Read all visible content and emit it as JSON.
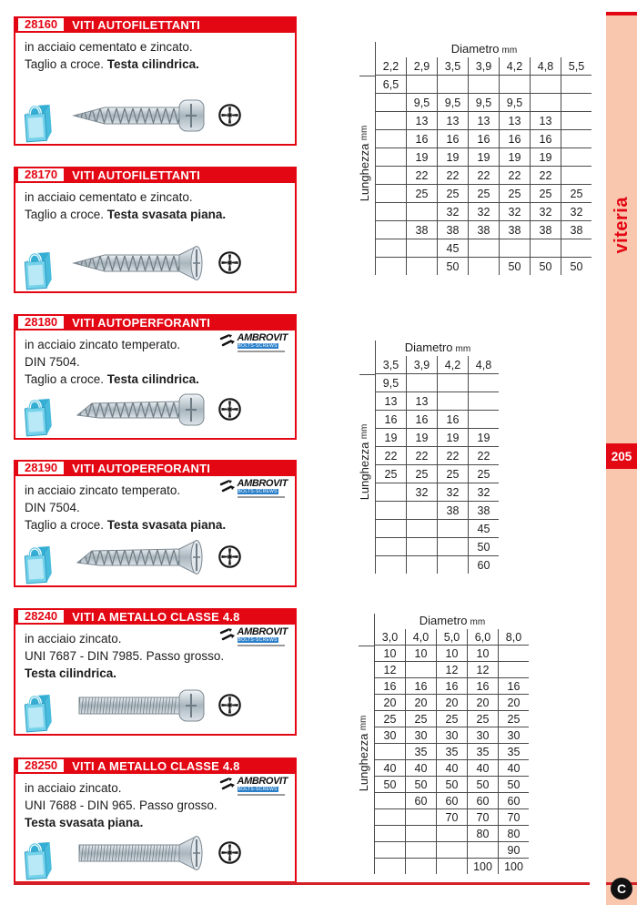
{
  "page": {
    "sidebar_label": "viteria",
    "page_number": "205",
    "footer_logo_letter": "C",
    "accent_red": "#e30613",
    "sidebar_pink": "#f8c7ae"
  },
  "logo": {
    "name": "AMBROVIT",
    "subtitle": "BOLTS-SCREWS"
  },
  "blocks": [
    {
      "code": "28160",
      "title": "VITI AUTOFILETTANTI",
      "lines": [
        {
          "n": "in acciaio cementato e zincato."
        },
        {
          "n": "Taglio a croce. ",
          "b": "Testa cilindrica."
        },
        {}
      ],
      "has_logo": false,
      "screw": {
        "thread": "coarse",
        "tip": "sharp",
        "head": "pan"
      }
    },
    {
      "code": "28170",
      "title": "VITI AUTOFILETTANTI",
      "lines": [
        {
          "n": "in acciaio cementato e zincato."
        },
        {
          "n": "Taglio a croce. ",
          "b": "Testa svasata piana."
        },
        {}
      ],
      "has_logo": false,
      "screw": {
        "thread": "coarse",
        "tip": "sharp",
        "head": "csk"
      }
    },
    {
      "code": "28180",
      "title": "VITI AUTOPERFORANTI",
      "lines": [
        {
          "n": "in acciaio zincato temperato."
        },
        {
          "n": "DIN 7504."
        },
        {
          "n": "Taglio a croce. ",
          "b": "Testa cilindrica."
        }
      ],
      "has_logo": true,
      "screw": {
        "thread": "coarse",
        "tip": "drill",
        "head": "pan"
      }
    },
    {
      "code": "28190",
      "title": "VITI AUTOPERFORANTI",
      "lines": [
        {
          "n": "in acciaio zincato temperato."
        },
        {
          "n": "DIN 7504."
        },
        {
          "n": "Taglio a croce. ",
          "b": "Testa svasata piana."
        }
      ],
      "has_logo": true,
      "screw": {
        "thread": "coarse",
        "tip": "drill",
        "head": "csk"
      }
    },
    {
      "code": "28240",
      "title": "VITI A METALLO CLASSE 4.8",
      "lines": [
        {
          "n": "in acciaio zincato."
        },
        {
          "n": "UNI 7687 - DIN 7985. Passo grosso."
        },
        {
          "b": "Testa cilindrica."
        }
      ],
      "has_logo": true,
      "screw": {
        "thread": "fine",
        "tip": "blunt",
        "head": "pan"
      }
    },
    {
      "code": "28250",
      "title": "VITI A METALLO CLASSE 4.8",
      "lines": [
        {
          "n": "in acciaio zincato."
        },
        {
          "n": "UNI 7688 - DIN 965. Passo grosso."
        },
        {
          "b": "Testa svasata piana."
        }
      ],
      "has_logo": true,
      "screw": {
        "thread": "fine",
        "tip": "blunt",
        "head": "csk"
      }
    }
  ],
  "tables": [
    {
      "title": "Diametro",
      "unit": "mm",
      "ylabel": "Lunghezza",
      "columns": [
        "2,2",
        "2,9",
        "3,5",
        "3,9",
        "4,2",
        "4,8",
        "5,5"
      ],
      "rows": [
        [
          "6,5",
          "",
          "",
          "",
          "",
          "",
          ""
        ],
        [
          "",
          "9,5",
          "9,5",
          "9,5",
          "9,5",
          "",
          ""
        ],
        [
          "",
          "13",
          "13",
          "13",
          "13",
          "13",
          ""
        ],
        [
          "",
          "16",
          "16",
          "16",
          "16",
          "16",
          ""
        ],
        [
          "",
          "19",
          "19",
          "19",
          "19",
          "19",
          ""
        ],
        [
          "",
          "22",
          "22",
          "22",
          "22",
          "22",
          ""
        ],
        [
          "",
          "25",
          "25",
          "25",
          "25",
          "25",
          "25"
        ],
        [
          "",
          "",
          "32",
          "32",
          "32",
          "32",
          "32"
        ],
        [
          "",
          "38",
          "38",
          "38",
          "38",
          "38",
          "38"
        ],
        [
          "",
          "",
          "45",
          "",
          "",
          "",
          ""
        ],
        [
          "",
          "",
          "50",
          "",
          "50",
          "50",
          "50"
        ]
      ]
    },
    {
      "title": "Diametro",
      "unit": "mm",
      "ylabel": "Lunghezza",
      "columns": [
        "3,5",
        "3,9",
        "4,2",
        "4,8"
      ],
      "rows": [
        [
          "9,5",
          "",
          "",
          ""
        ],
        [
          "13",
          "13",
          "",
          ""
        ],
        [
          "16",
          "16",
          "16",
          ""
        ],
        [
          "19",
          "19",
          "19",
          "19"
        ],
        [
          "22",
          "22",
          "22",
          "22"
        ],
        [
          "25",
          "25",
          "25",
          "25"
        ],
        [
          "",
          "32",
          "32",
          "32"
        ],
        [
          "",
          "",
          "38",
          "38"
        ],
        [
          "",
          "",
          "",
          "45"
        ],
        [
          "",
          "",
          "",
          "50"
        ],
        [
          "",
          "",
          "",
          "60"
        ]
      ]
    },
    {
      "title": "Diametro",
      "unit": "mm",
      "ylabel": "Lunghezza",
      "columns": [
        "3,0",
        "4,0",
        "5,0",
        "6,0",
        "8,0"
      ],
      "rows": [
        [
          "10",
          "10",
          "10",
          "10",
          ""
        ],
        [
          "12",
          "",
          "12",
          "12",
          ""
        ],
        [
          "16",
          "16",
          "16",
          "16",
          "16"
        ],
        [
          "20",
          "20",
          "20",
          "20",
          "20"
        ],
        [
          "25",
          "25",
          "25",
          "25",
          "25"
        ],
        [
          "30",
          "30",
          "30",
          "30",
          "30"
        ],
        [
          "",
          "35",
          "35",
          "35",
          "35"
        ],
        [
          "40",
          "40",
          "40",
          "40",
          "40"
        ],
        [
          "50",
          "50",
          "50",
          "50",
          "50"
        ],
        [
          "",
          "60",
          "60",
          "60",
          "60"
        ],
        [
          "",
          "",
          "70",
          "70",
          "70"
        ],
        [
          "",
          "",
          "",
          "80",
          "80"
        ],
        [
          "",
          "",
          "",
          "",
          "90"
        ],
        [
          "",
          "",
          "",
          "100",
          "100"
        ]
      ]
    }
  ]
}
